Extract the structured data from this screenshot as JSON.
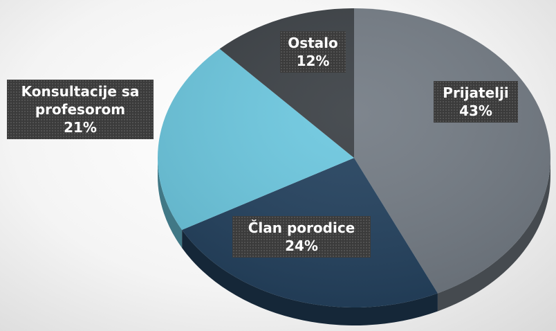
{
  "chart_data": {
    "type": "pie",
    "categories": [
      "Prijatelji",
      "Član porodice",
      "Konsultacije sa profesorom",
      "Ostalo"
    ],
    "values": [
      43,
      24,
      21,
      12
    ],
    "value_labels": [
      "43%",
      "24%",
      "21%",
      "12%"
    ],
    "colors": [
      "#737b84",
      "#23415e",
      "#6cc8e0",
      "#3a3f44"
    ]
  }
}
